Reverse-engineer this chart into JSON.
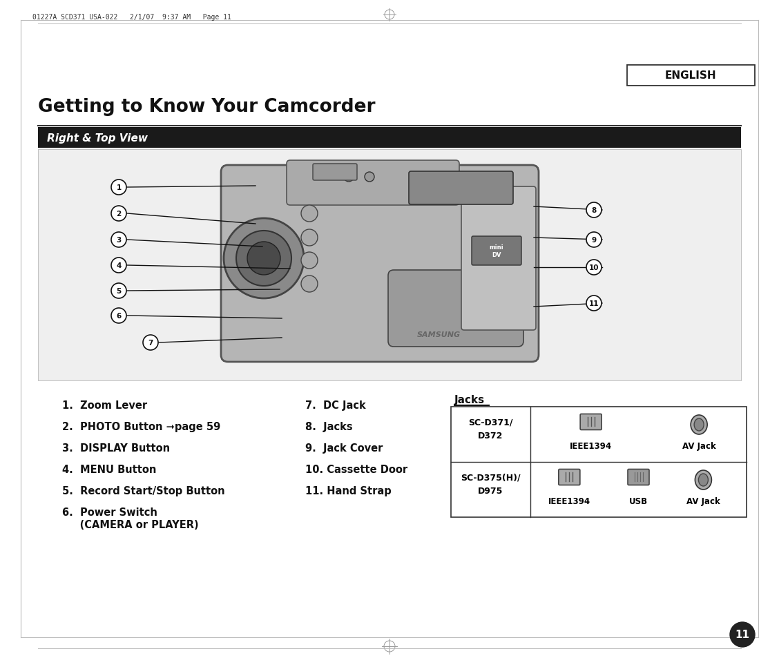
{
  "page_bg": "#ffffff",
  "header_text": "01227A SCD371 USA-022   2/1/07  9:37 AM   Page 11",
  "english_label": "ENGLISH",
  "title": "Getting to Know Your Camcorder",
  "subtitle": "Right & Top View",
  "subtitle_bg": "#1a1a1a",
  "subtitle_text_color": "#ffffff",
  "image_area_bg": "#efefef",
  "left_items": [
    "1.  Zoom Lever",
    "2.  PHOTO Button ➞page 59",
    "3.  DISPLAY Button",
    "4.  MENU Button",
    "5.  Record Start/Stop Button",
    "6.  Power Switch"
  ],
  "left_item6_cont": "     (CAMERA or PLAYER)",
  "right_items": [
    "7.  DC Jack",
    "8.  Jacks",
    "9.  Jack Cover",
    "10. Cassette Door",
    "11. Hand Strap"
  ],
  "jacks_title": "Jacks",
  "page_number": "11",
  "callout_color": "#111111",
  "border_color": "#cccccc"
}
